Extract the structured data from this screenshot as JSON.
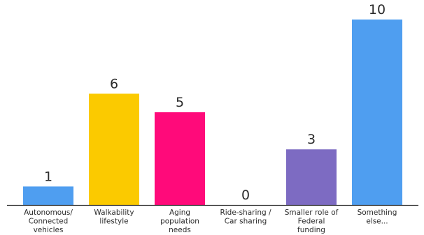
{
  "chart_data": {
    "type": "bar",
    "categories": [
      [
        "Autonomous/",
        "Connected",
        "vehicles"
      ],
      [
        "Walkability",
        "lifestyle"
      ],
      [
        "Aging",
        "population",
        "needs"
      ],
      [
        "Ride-sharing /",
        "Car sharing"
      ],
      [
        "Smaller role of",
        "Federal",
        "funding"
      ],
      [
        "Something",
        "else..."
      ]
    ],
    "values": [
      1,
      6,
      5,
      0,
      3,
      10
    ],
    "colors": [
      "#4f9ef0",
      "#fbca00",
      "#ff0a7a",
      "#ffffff",
      "#7d6bc2",
      "#4f9ef0"
    ],
    "ylim": [
      0,
      10
    ],
    "axis_color": "#333333",
    "grid": false,
    "legend": false
  }
}
